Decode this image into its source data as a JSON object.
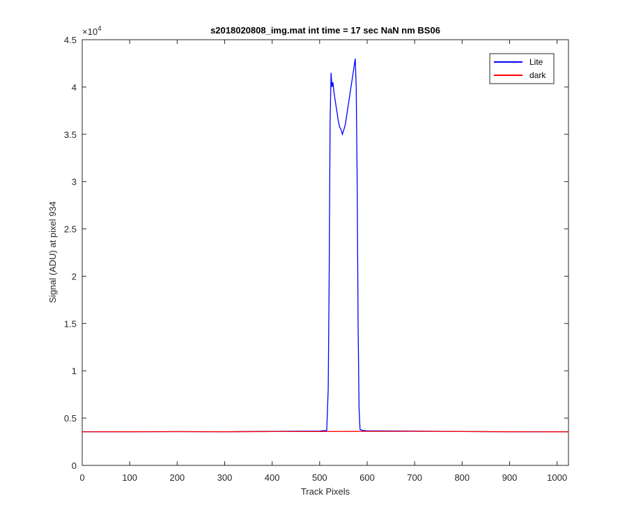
{
  "chart_data": {
    "type": "line",
    "title": "s2018020808_img.mat int time = 17 sec  NaN nm BS06",
    "xlabel": "Track Pixels",
    "ylabel": "Signal (ADU) at pixel 934",
    "xlim": [
      0,
      1024
    ],
    "ylim": [
      0,
      45000
    ],
    "y_exponent_label": "×10",
    "y_exponent_power": "4",
    "x_ticks": [
      0,
      100,
      200,
      300,
      400,
      500,
      600,
      700,
      800,
      900,
      1000
    ],
    "x_tick_labels": [
      "0",
      "100",
      "200",
      "300",
      "400",
      "500",
      "600",
      "700",
      "800",
      "900",
      "1000"
    ],
    "y_ticks": [
      0,
      5000,
      10000,
      15000,
      20000,
      25000,
      30000,
      35000,
      40000,
      45000
    ],
    "y_tick_labels": [
      "0",
      "0.5",
      "1",
      "1.5",
      "2",
      "2.5",
      "3",
      "3.5",
      "4",
      "4.5"
    ],
    "grid": false,
    "legend_position": "top-right",
    "series": [
      {
        "name": "Lite",
        "color": "#0000ff",
        "x": [
          0,
          100,
          200,
          300,
          400,
          500,
          515,
          518,
          520,
          522,
          524,
          526,
          528,
          530,
          533,
          536,
          539,
          542,
          545,
          548,
          551,
          554,
          557,
          560,
          563,
          566,
          569,
          572,
          575,
          577,
          579,
          581,
          583,
          585,
          590,
          600,
          700,
          800,
          900,
          1024
        ],
        "y": [
          3550,
          3560,
          3570,
          3560,
          3600,
          3620,
          3700,
          8000,
          20000,
          36000,
          41500,
          40000,
          40500,
          39500,
          38500,
          37500,
          36500,
          35800,
          35500,
          35000,
          35500,
          36000,
          37000,
          38000,
          39000,
          40000,
          41000,
          42000,
          43000,
          40000,
          30000,
          15000,
          6000,
          3800,
          3700,
          3650,
          3620,
          3580,
          3560,
          3550
        ]
      },
      {
        "name": "dark",
        "color": "#ff0000",
        "x": [
          0,
          100,
          200,
          300,
          400,
          500,
          600,
          700,
          800,
          900,
          1024
        ],
        "y": [
          3550,
          3560,
          3570,
          3560,
          3580,
          3580,
          3600,
          3600,
          3580,
          3560,
          3550
        ]
      }
    ]
  }
}
